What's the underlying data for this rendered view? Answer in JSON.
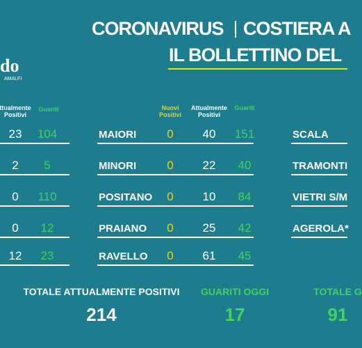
{
  "header": {
    "title_line1": "CORONAVIRUS",
    "title_line1b": "COSTIERA A",
    "title_line2": "IL BOLLETTINO DEL"
  },
  "logo": {
    "text": "do",
    "subtext": "AMALFI"
  },
  "left_table": {
    "headers": [
      "ttualmente Positivi",
      "Guariti"
    ],
    "rows": [
      [
        23,
        104
      ],
      [
        2,
        5
      ],
      [
        0,
        110
      ],
      [
        0,
        12
      ],
      [
        12,
        23
      ]
    ]
  },
  "middle_table": {
    "headers": [
      "Nuovi Positivi",
      "Attualmente Positivi",
      "Guariti"
    ],
    "rows": [
      [
        "MAIORI",
        0,
        40,
        151
      ],
      [
        "MINORI",
        0,
        22,
        40
      ],
      [
        "POSITANO",
        0,
        10,
        84
      ],
      [
        "PRAIANO",
        0,
        25,
        42
      ],
      [
        "RAVELLO",
        0,
        61,
        45
      ]
    ]
  },
  "right_table": {
    "rows": [
      "SCALA",
      "TRAMONTI",
      "VIETRI S/M",
      "AGEROLA*"
    ]
  },
  "totals": [
    {
      "label": "TOTALE ATTUALMENTE POSITIVI",
      "value": 214
    },
    {
      "label": "GUARITI OGGI",
      "value": 17
    },
    {
      "label": "TOTALE G",
      "value": 91
    }
  ]
}
